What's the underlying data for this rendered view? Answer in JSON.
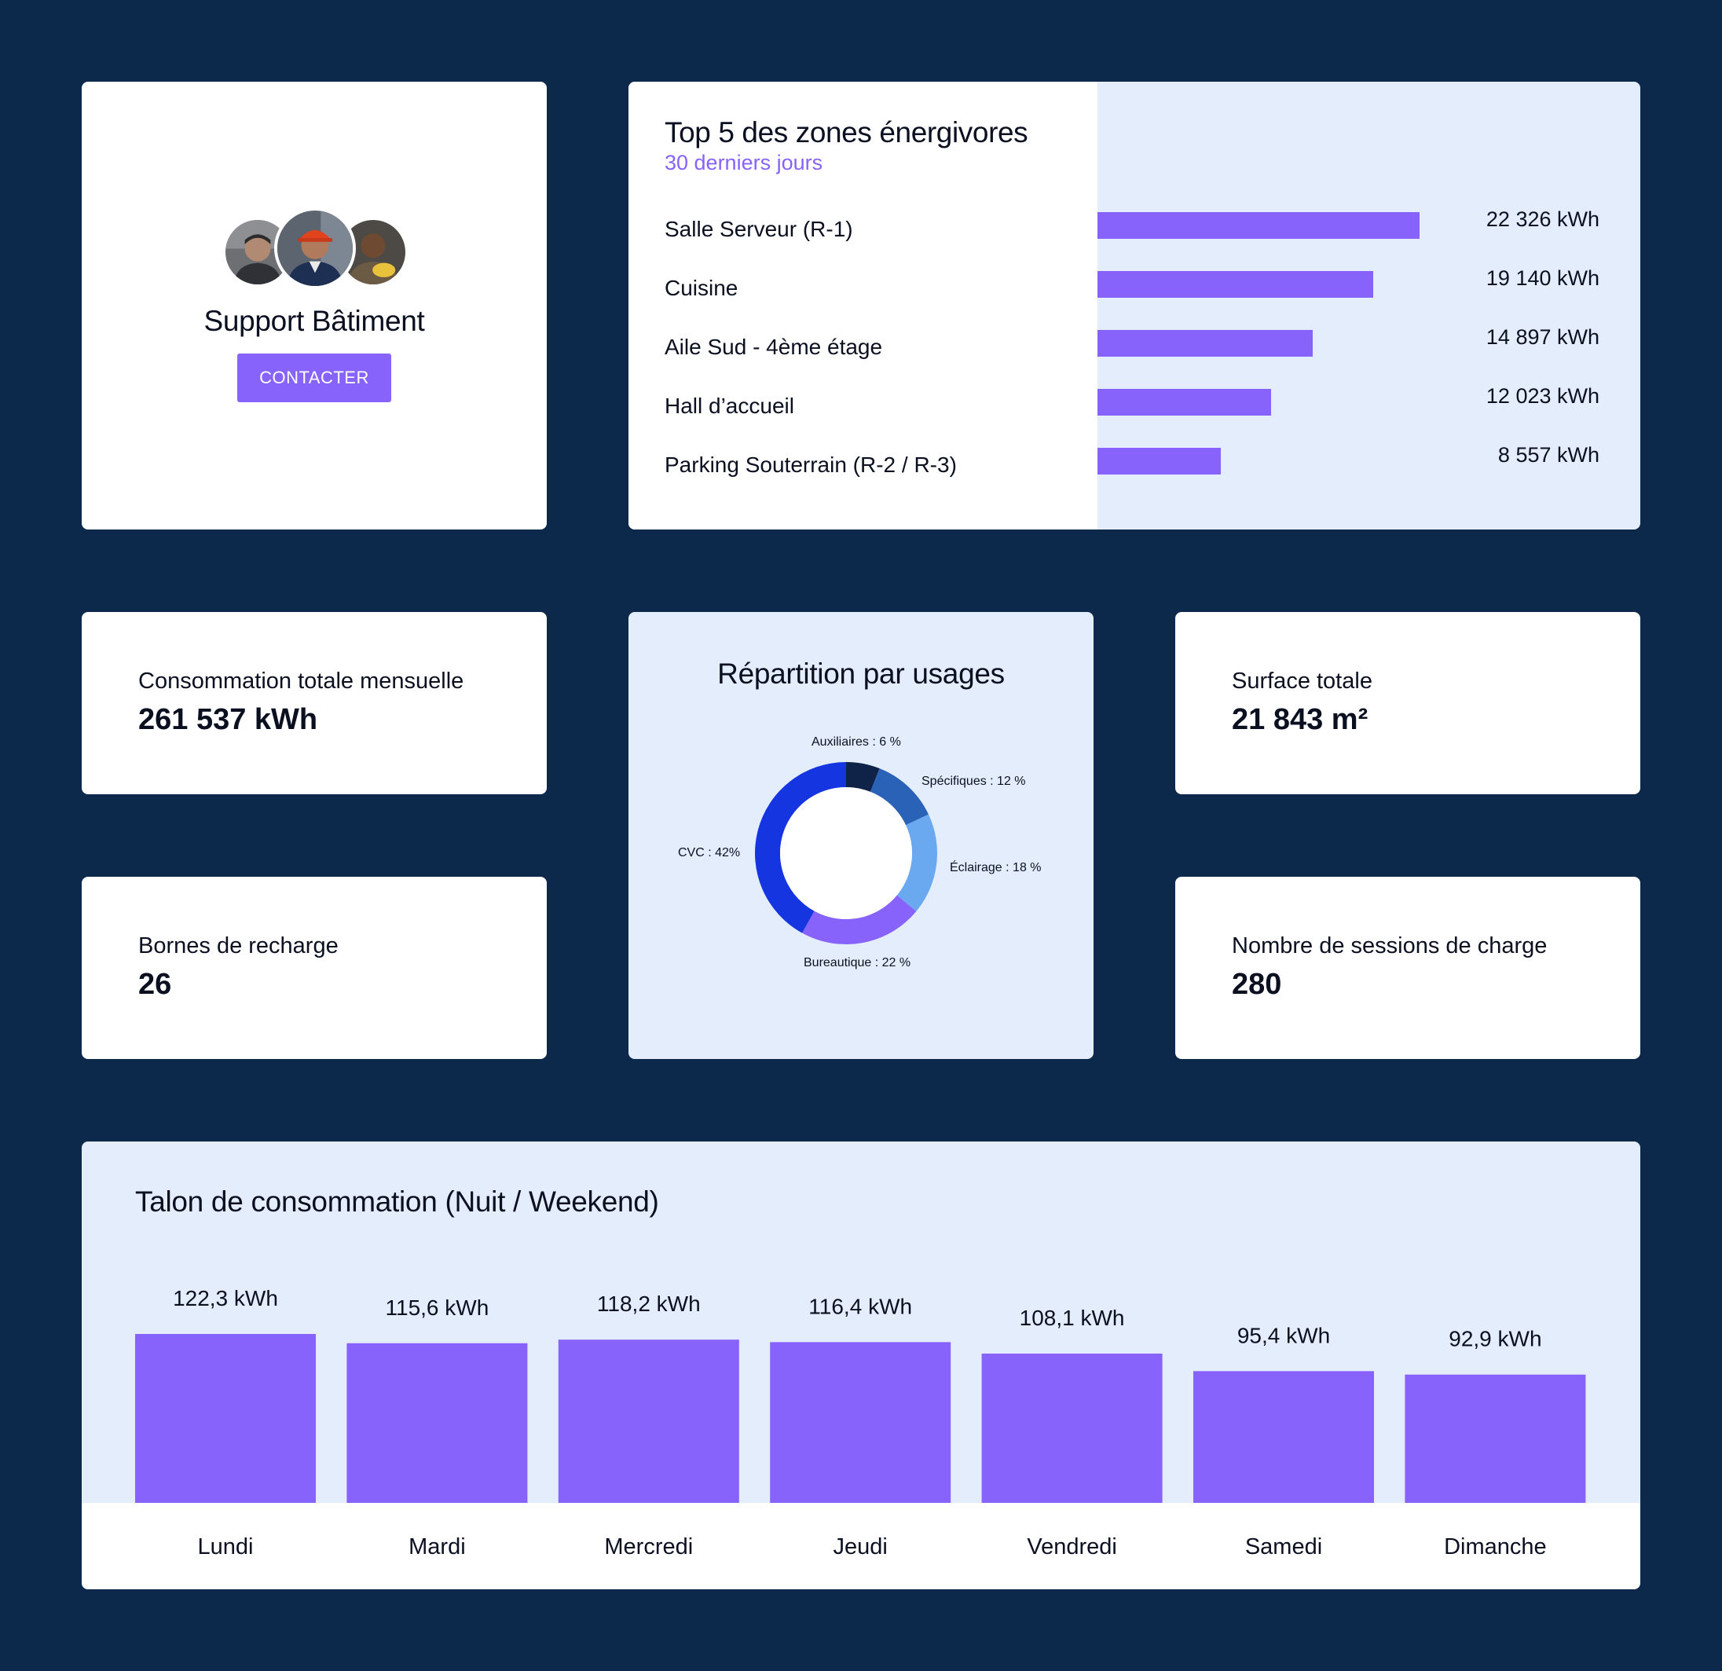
{
  "colors": {
    "background": "#0c284a",
    "accent": "#8763fc",
    "panel_light": "#e4edfb",
    "text": "#0b1021"
  },
  "support": {
    "title": "Support Bâtiment",
    "button_label": "CONTACTER",
    "avatars": [
      "worker-avatar",
      "technician-hardhat-avatar",
      "worker-helmet-avatar"
    ]
  },
  "top_zones": {
    "title": "Top 5 des zones énergivores",
    "subtitle": "30 derniers jours",
    "items": [
      {
        "label": "Salle Serveur (R-1)",
        "value_text": "22 326 kWh",
        "value": 22326
      },
      {
        "label": "Cuisine",
        "value_text": "19 140 kWh",
        "value": 19140
      },
      {
        "label": "Aile Sud - 4ème étage",
        "value_text": "14 897 kWh",
        "value": 14897
      },
      {
        "label": "Hall d’accueil",
        "value_text": "12 023 kWh",
        "value": 12023
      },
      {
        "label": "Parking Souterrain (R-2 / R-3)",
        "value_text": "8 557 kWh",
        "value": 8557
      }
    ]
  },
  "kpis": {
    "conso": {
      "label": "Consommation totale mensuelle",
      "value": "261 537 kWh"
    },
    "bornes": {
      "label": "Bornes de recharge",
      "value": "26"
    },
    "surface": {
      "label": "Surface totale",
      "value": "21 843 m²"
    },
    "sessions": {
      "label": "Nombre de sessions de charge",
      "value": "280"
    }
  },
  "usages": {
    "title": "Répartition par usages",
    "chart_data": {
      "type": "pie",
      "variant": "donut",
      "slices": [
        {
          "label": "Auxiliaires : 6 %",
          "value": 6,
          "color": "#0e2347"
        },
        {
          "label": "Spécifiques : 12 %",
          "value": 12,
          "color": "#2a62b8"
        },
        {
          "label": "Éclairage : 18 %",
          "value": 18,
          "color": "#6aa9ef"
        },
        {
          "label": "Bureautique : 22 %",
          "value": 22,
          "color": "#8763fc"
        },
        {
          "label": "CVC : 42%",
          "value": 42,
          "color": "#1535e0"
        }
      ]
    }
  },
  "talon": {
    "title": "Talon de consommation (Nuit / Weekend)",
    "chart_data": {
      "type": "bar",
      "categories": [
        "Lundi",
        "Mardi",
        "Mercredi",
        "Jeudi",
        "Vendredi",
        "Samedi",
        "Dimanche"
      ],
      "values": [
        122.3,
        115.6,
        118.2,
        116.4,
        108.1,
        95.4,
        92.9
      ],
      "value_labels": [
        "122,3 kWh",
        "115,6 kWh",
        "118,2 kWh",
        "116,4 kWh",
        "108,1 kWh",
        "95,4 kWh",
        "92,9 kWh"
      ]
    }
  }
}
